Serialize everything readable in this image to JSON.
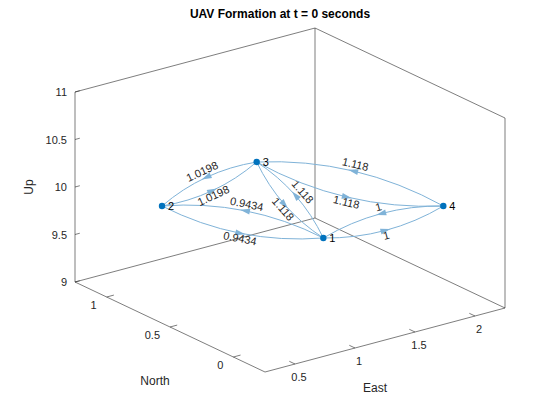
{
  "chart_data": {
    "type": "graph3d",
    "title": "UAV Formation at t = 0 seconds",
    "x_label": "East",
    "y_label": "North",
    "z_label": "Up",
    "xlim": [
      0.25,
      2.25
    ],
    "xticks": [
      0.5,
      1,
      1.5,
      2
    ],
    "ylim": [
      -0.25,
      1.25
    ],
    "yticks": [
      0,
      0.5,
      1
    ],
    "zlim": [
      9,
      11
    ],
    "zticks": [
      9,
      9.5,
      10,
      10.5,
      11
    ],
    "color": "#0072bd",
    "edge_color": "#80b3d8",
    "nodes": [
      {
        "label": "1",
        "x": 1,
        "y": 0,
        "z": 10
      },
      {
        "label": "2",
        "x": 0.5,
        "y": 0.8,
        "z": 10
      },
      {
        "label": "3",
        "x": 1.5,
        "y": 1,
        "z": 10
      },
      {
        "label": "4",
        "x": 2,
        "y": 0,
        "z": 10
      }
    ],
    "edges": [
      {
        "source": "1",
        "target": "2",
        "weight": 0.9434
      },
      {
        "source": "2",
        "target": "1",
        "weight": 0.9434
      },
      {
        "source": "2",
        "target": "3",
        "weight": 1.0198
      },
      {
        "source": "3",
        "target": "2",
        "weight": 1.0198
      },
      {
        "source": "1",
        "target": "3",
        "weight": 1.118
      },
      {
        "source": "3",
        "target": "1",
        "weight": 1.118
      },
      {
        "source": "3",
        "target": "4",
        "weight": 1.118
      },
      {
        "source": "4",
        "target": "3",
        "weight": 1.118
      },
      {
        "source": "1",
        "target": "4",
        "weight": 1
      },
      {
        "source": "4",
        "target": "1",
        "weight": 1
      }
    ]
  }
}
